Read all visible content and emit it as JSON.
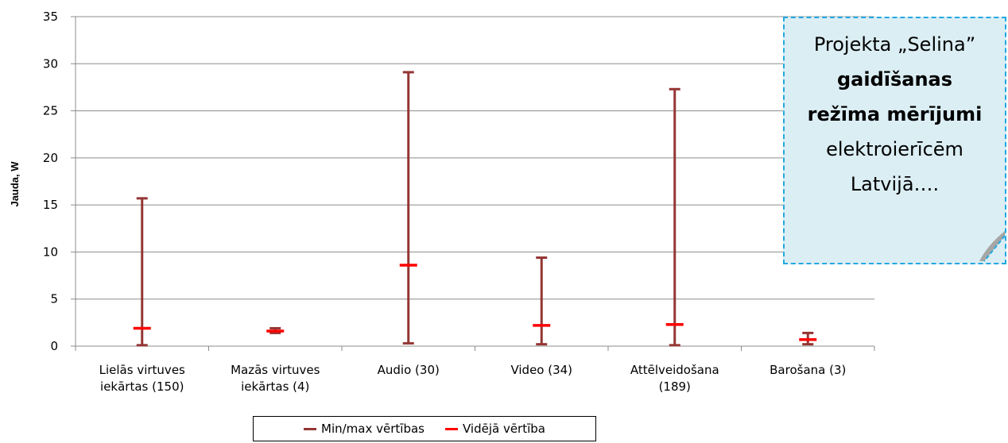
{
  "chart_data": {
    "type": "error-bar",
    "title": "",
    "xlabel": "",
    "ylabel": "Jauda, W",
    "ylim": [
      0,
      35
    ],
    "yticks": [
      0,
      5,
      10,
      15,
      20,
      25,
      30,
      35
    ],
    "grid": true,
    "legend_position": "bottom",
    "categories": [
      [
        "Lielās virtuves",
        "iekārtas (150)"
      ],
      [
        "Mazās virtuves",
        "iekārtas (4)"
      ],
      [
        "Audio (30)"
      ],
      [
        "Video (34)"
      ],
      [
        "Attēlveidošana",
        "(189)"
      ],
      [
        "Barošana (3)"
      ]
    ],
    "series": [
      {
        "name": "Min/max vērtības",
        "color": "#943634",
        "min": [
          0.1,
          1.4,
          0.3,
          0.2,
          0.1,
          0.2
        ],
        "max": [
          15.7,
          1.9,
          29.1,
          9.4,
          27.3,
          1.4
        ]
      },
      {
        "name": "Vidējā vērtība",
        "color": "#ff0000",
        "values": [
          1.9,
          1.6,
          8.6,
          2.2,
          2.3,
          0.7
        ]
      }
    ]
  },
  "callout": {
    "lines": [
      {
        "text": "Projekta „Selina”",
        "bold": false
      },
      {
        "text": "gaidīšanas",
        "bold": true
      },
      {
        "text": "režīma mērījumi",
        "bold": true
      },
      {
        "text": "elektroierīcēm",
        "bold": false
      },
      {
        "text": "Latvijā….",
        "bold": false
      }
    ],
    "fill": "#dbeef4",
    "border": "#22a9e0"
  }
}
